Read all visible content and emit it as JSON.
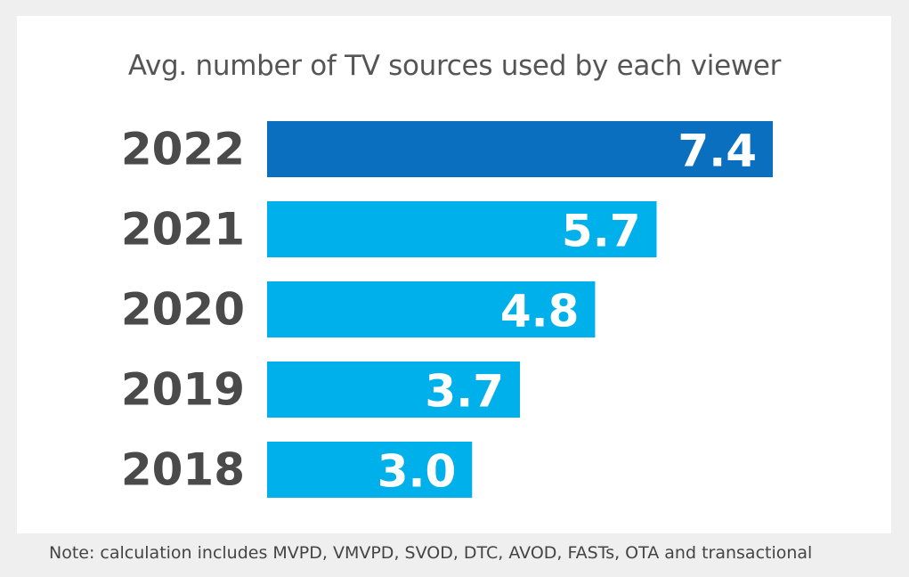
{
  "colors": {
    "highlight": "#0b6fc0",
    "default": "#00b0eb",
    "background": "#efefef",
    "card": "#ffffff"
  },
  "chart_data": {
    "type": "bar",
    "orientation": "horizontal",
    "title": "Avg. number of TV sources used by each viewer",
    "categories": [
      "2022",
      "2021",
      "2020",
      "2019",
      "2018"
    ],
    "values": [
      7.4,
      5.7,
      4.8,
      3.7,
      3.0
    ],
    "value_labels": [
      "7.4",
      "5.7",
      "4.8",
      "3.7",
      "3.0"
    ],
    "highlighted_category": "2022",
    "xlim": [
      0,
      7.4
    ],
    "xlabel": "",
    "ylabel": "",
    "grid": false,
    "legend": "none"
  },
  "note": "Note: calculation includes MVPD, VMVPD, SVOD, DTC, AVOD, FASTs, OTA and transactional"
}
